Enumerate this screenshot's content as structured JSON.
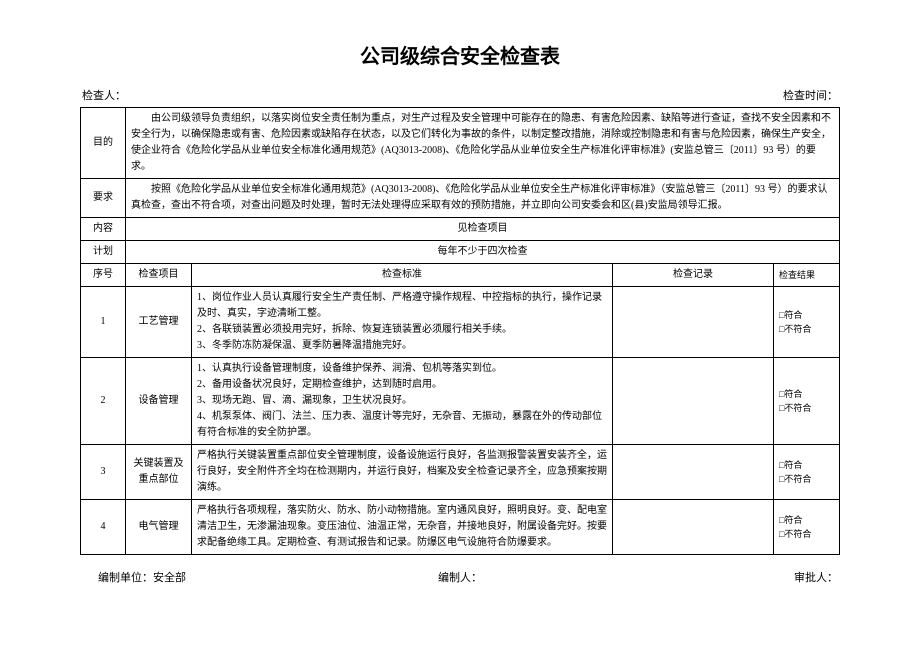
{
  "title": "公司级综合安全检查表",
  "header": {
    "inspector_label": "检查人：",
    "time_label": "检查时间："
  },
  "rows": {
    "purpose": {
      "label": "目的",
      "text": "由公司级领导负责组织，以落实岗位安全责任制为重点，对生产过程及安全管理中可能存在的隐患、有害危险因素、缺陷等进行查证，查找不安全因素和不安全行为，以确保隐患或有害、危险因素或缺陷存在状态，以及它们转化为事故的条件，以制定整改措施，消除或控制隐患和有害与危险因素，确保生产安全，使企业符合《危险化学品从业单位安全标准化通用规范》(AQ3013-2008)、《危险化学品从业单位安全生产标准化评审标准》(安监总管三〔2011〕93 号）的要求。"
    },
    "requirement": {
      "label": "要求",
      "text": "按照《危险化学品从业单位安全标准化通用规范》(AQ3013-2008)、《危险化学品从业单位安全生产标准化评审标准》（安监总管三〔2011〕93 号）的要求认真检查，查出不符合项，对查出问题及时处理，暂时无法处理得应采取有效的预防措施，并立即向公司安委会和区(县)安监局领导汇报。"
    },
    "content": {
      "label": "内容",
      "text": "见检查项目"
    },
    "plan": {
      "label": "计划",
      "text": "每年不少于四次检查"
    }
  },
  "table_head": {
    "seq": "序号",
    "item": "检查项目",
    "standard": "检查标准",
    "record": "检查记录",
    "result": "检查结果"
  },
  "items": [
    {
      "seq": "1",
      "name": "工艺管理",
      "standard": "1、岗位作业人员认真履行安全生产责任制、严格遵守操作规程、中控指标的执行，操作记录及时、真实，字迹清晰工整。\n2、各联锁装置必须投用完好，拆除、恢复连锁装置必须履行相关手续。\n3、冬季防冻防凝保温、夏季防暑降温措施完好。",
      "record": "",
      "result": "□符合\n□不符合"
    },
    {
      "seq": "2",
      "name": "设备管理",
      "standard": "1、认真执行设备管理制度，设备维护保养、润滑、包机等落实到位。\n2、备用设备状况良好，定期检查维护，达到随时启用。\n3、现场无跑、冒、滴、漏现象，卫生状况良好。\n4、机泵泵体、阀门、法兰、压力表、温度计等完好，无杂音、无振动，暴露在外的传动部位有符合标准的安全防护罩。",
      "record": "",
      "result": "□符合\n□不符合"
    },
    {
      "seq": "3",
      "name": "关键装置及重点部位",
      "standard": "严格执行关键装置重点部位安全管理制度，设备设施运行良好，各监测报警装置安装齐全，运行良好，安全附件齐全均在检测期内，并运行良好，档案及安全检查记录齐全，应急预案按期演练。",
      "record": "",
      "result": "□符合\n□不符合"
    },
    {
      "seq": "4",
      "name": "电气管理",
      "standard": "严格执行各项规程，落实防火、防水、防小动物措施。室内通风良好，照明良好。变、配电室清洁卫生，无渗漏油现象。变压油位、油温正常，无杂音，并接地良好，附属设备完好。按要求配备绝缘工具。定期检查、有测试报告和记录。防爆区电气设施符合防爆要求。",
      "record": "",
      "result": "□符合\n□不符合"
    }
  ],
  "footer": {
    "dept": "编制单位：安全部",
    "author": "编制人：",
    "approver": "审批人："
  }
}
